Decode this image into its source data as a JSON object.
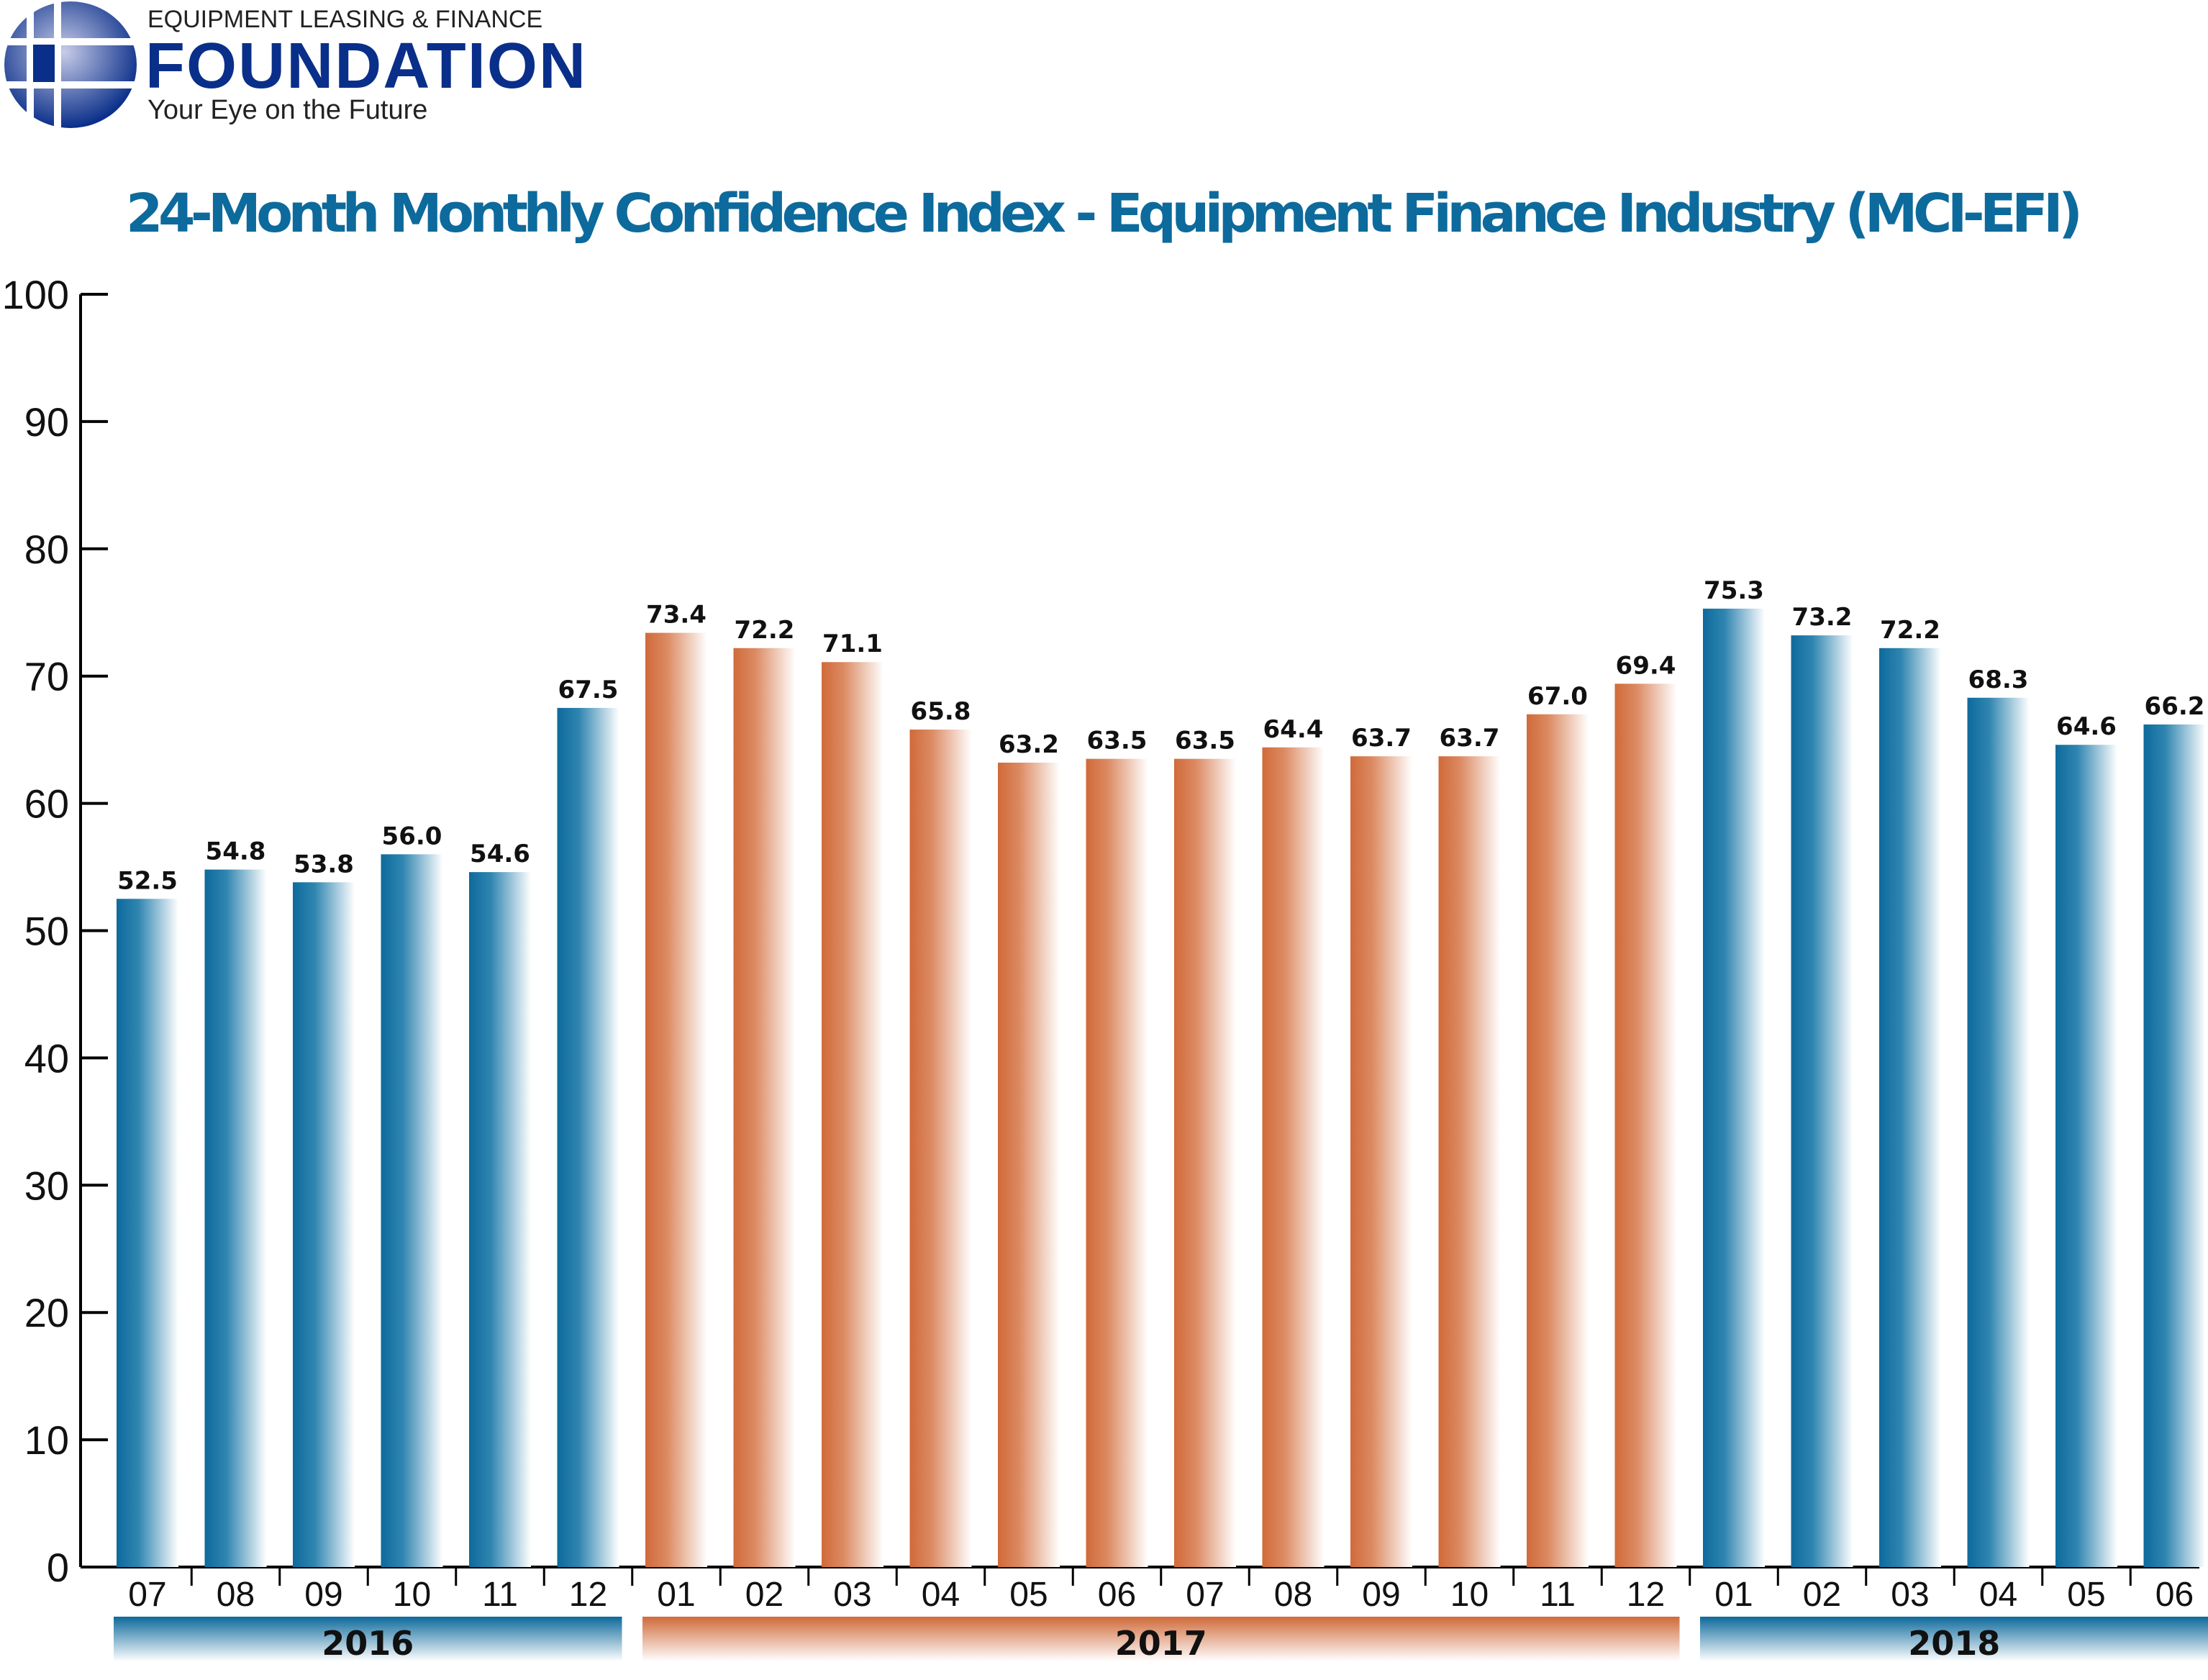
{
  "logo": {
    "line1": "EQUIPMENT LEASING & FINANCE",
    "line2": "FOUNDATION",
    "line3": "Your Eye on the Future",
    "color": "#0a2f8a"
  },
  "colors": {
    "year_a": "#0d6a9c",
    "year_b": "#d06a3a",
    "title": "#0d6a9c"
  },
  "chart_data": {
    "type": "bar",
    "title": "24-Month Monthly Confidence Index - Equipment Finance Industry (MCI-EFI)",
    "ylim": [
      0,
      100
    ],
    "yticks": [
      0,
      10,
      20,
      30,
      40,
      50,
      60,
      70,
      80,
      90,
      100
    ],
    "grid": false,
    "categories": [
      "07",
      "08",
      "09",
      "10",
      "11",
      "12",
      "01",
      "02",
      "03",
      "04",
      "05",
      "06",
      "07",
      "08",
      "09",
      "10",
      "11",
      "12",
      "01",
      "02",
      "03",
      "04",
      "05",
      "06"
    ],
    "values": [
      52.5,
      54.8,
      53.8,
      56.0,
      54.6,
      67.5,
      73.4,
      72.2,
      71.1,
      65.8,
      63.2,
      63.5,
      63.5,
      64.4,
      63.7,
      63.7,
      67.0,
      69.4,
      75.3,
      73.2,
      72.2,
      68.3,
      64.6,
      66.2
    ],
    "data_labels": [
      "52.5",
      "54.8",
      "53.8",
      "56.0",
      "54.6",
      "67.5",
      "73.4",
      "72.2",
      "71.1",
      "65.8",
      "63.2",
      "63.5",
      "63.5",
      "64.4",
      "63.7",
      "63.7",
      "67.0",
      "69.4",
      "75.3",
      "73.2",
      "72.2",
      "68.3",
      "64.6",
      "66.2"
    ],
    "years": [
      {
        "label": "2016",
        "months": 6
      },
      {
        "label": "2017",
        "months": 12
      },
      {
        "label": "2018",
        "months": 6
      }
    ]
  }
}
